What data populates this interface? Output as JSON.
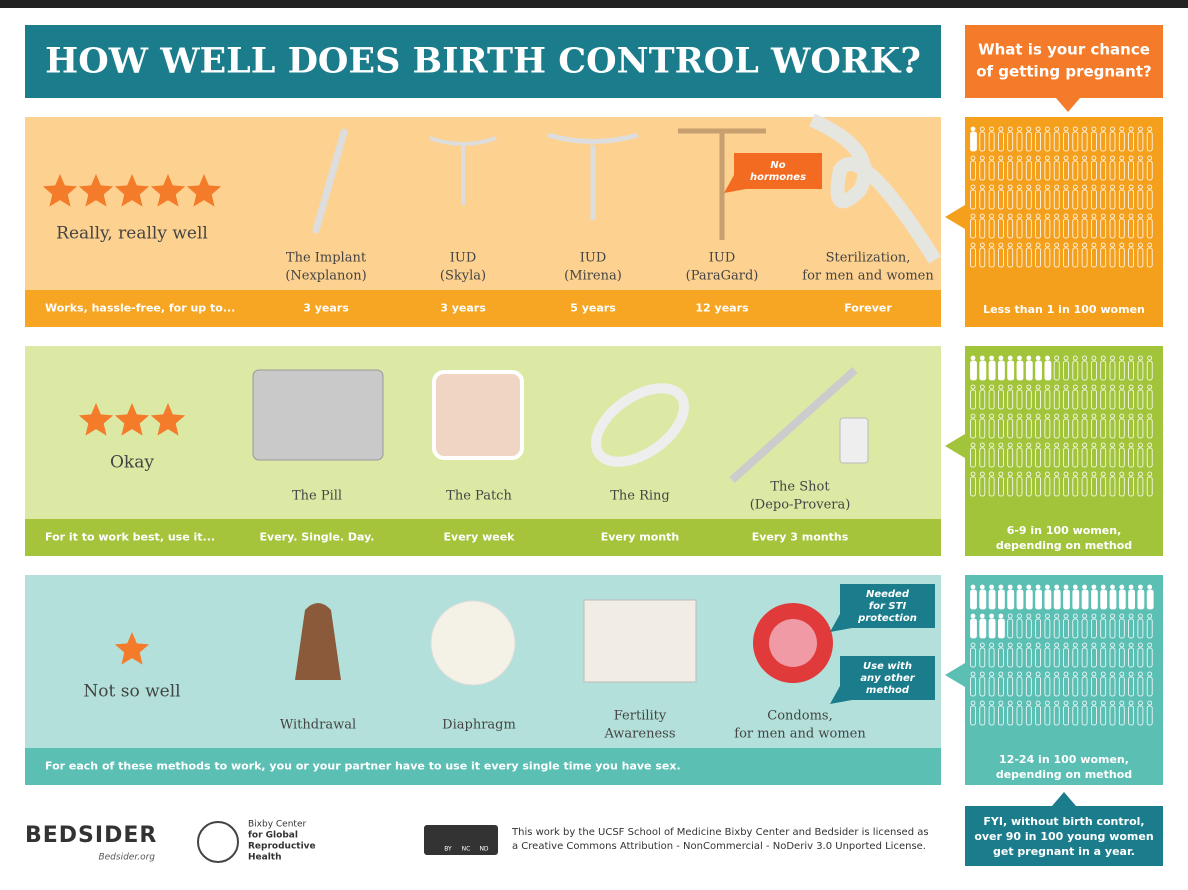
{
  "title": "HOW WELL DOES BIRTH CONTROL WORK?",
  "chance_header": [
    "What is your chance",
    "of getting pregnant?"
  ],
  "tiers": [
    {
      "stars": 5,
      "rating": "Really, really well",
      "bar_label": "Works, hassle-free, for up to...",
      "methods": [
        {
          "name": [
            "The Implant",
            "(Nexplanon)"
          ],
          "detail": "3 years"
        },
        {
          "name": [
            "IUD",
            "(Skyla)"
          ],
          "detail": "3 years"
        },
        {
          "name": [
            "IUD",
            "(Mirena)"
          ],
          "detail": "5 years"
        },
        {
          "name": [
            "IUD",
            "(ParaGard)"
          ],
          "detail": "12 years"
        },
        {
          "name": [
            "Sterilization,",
            "for men and women"
          ],
          "detail": "Forever"
        }
      ],
      "callouts": [
        [
          "No",
          "hormones"
        ]
      ],
      "chance": [
        "Less than 1 in 100 women"
      ],
      "women_pregnant": 1,
      "women_total": 100
    },
    {
      "stars": 3,
      "rating": "Okay",
      "bar_label": "For it to work best, use it...",
      "methods": [
        {
          "name": [
            "The Pill"
          ],
          "detail": "Every. Single. Day."
        },
        {
          "name": [
            "The Patch"
          ],
          "detail": "Every week"
        },
        {
          "name": [
            "The Ring"
          ],
          "detail": "Every month"
        },
        {
          "name": [
            "The Shot",
            "(Depo-Provera)"
          ],
          "detail": "Every 3 months"
        }
      ],
      "callouts": [],
      "chance": [
        "6-9 in 100 women,",
        "depending on method"
      ],
      "women_pregnant": 9,
      "women_total": 100
    },
    {
      "stars": 1,
      "rating": "Not so well",
      "bar_label": "For each of these methods to work, you or your partner have to use it every single time you have sex.",
      "methods": [
        {
          "name": [
            "Withdrawal"
          ]
        },
        {
          "name": [
            "Diaphragm"
          ]
        },
        {
          "name": [
            "Fertility",
            "Awareness"
          ]
        },
        {
          "name": [
            "Condoms,",
            "for men and women"
          ]
        }
      ],
      "callouts": [
        [
          "Needed",
          "for STI",
          "protection"
        ],
        [
          "Use with",
          "any other",
          "method"
        ]
      ],
      "chance": [
        "12-24 in 100 women,",
        "depending on method"
      ],
      "women_pregnant": 24,
      "women_total": 100
    }
  ],
  "fyi": [
    "FYI, without birth control,",
    "over 90 in 100 young women",
    "get pregnant in a year."
  ],
  "footer": {
    "logo": "BEDSIDER",
    "site": "Bedsider.org",
    "bixby": [
      "Bixby Center",
      "for Global",
      "Reproductive",
      "Health"
    ],
    "cc": [
      "BY",
      "NC",
      "ND"
    ],
    "license": [
      "This work by the UCSF School of Medicine Bixby Center and Bedsider is licensed as",
      "a Creative Commons Attribution - NonCommercial - NoDeriv 3.0 Unported License."
    ]
  }
}
